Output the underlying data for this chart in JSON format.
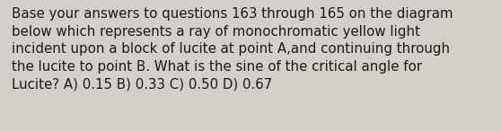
{
  "text": "Base your answers to questions 163 through 165 on the diagram\nbelow which represents a ray of monochromatic yellow light\nincident upon a block of lucite at point A,and continuing through\nthe lucite to point B. What is the sine of the critical angle for\nLucite? A) 0.15 B) 0.33 C) 0.50 D) 0.67",
  "background_color": "#d3cfc9",
  "text_color": "#1a1a1a",
  "font_size": 10.8,
  "fig_width": 5.58,
  "fig_height": 1.46
}
